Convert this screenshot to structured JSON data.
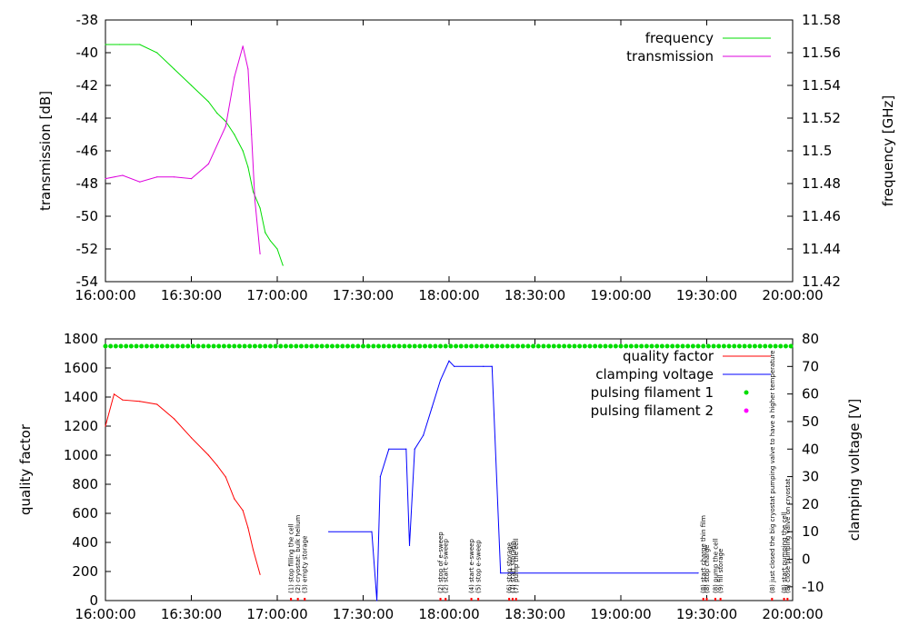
{
  "chart_data": [
    {
      "type": "line",
      "x_tick_labels": [
        "16:00:00",
        "16:30:00",
        "17:00:00",
        "17:30:00",
        "18:00:00",
        "18:30:00",
        "19:00:00",
        "19:30:00",
        "20:00:00"
      ],
      "x_range_hours": [
        16,
        20
      ],
      "ylabel": "transmission [dB]",
      "y2label": "frequency [GHz]",
      "ylim": [
        -54,
        -38
      ],
      "y2lim": [
        11.42,
        11.58
      ],
      "y_tick_labels": [
        "-38",
        "-40",
        "-42",
        "-44",
        "-46",
        "-48",
        "-50",
        "-52",
        "-54"
      ],
      "y2_tick_labels": [
        "11.58",
        "11.56",
        "11.54",
        "11.52",
        "11.5",
        "11.48",
        "11.46",
        "11.44",
        "11.42"
      ],
      "legend_position": "top-right",
      "series": [
        {
          "name": "frequency",
          "axis": "y2",
          "color": "#00dd00",
          "points": [
            [
              16.0,
              11.565
            ],
            [
              16.083,
              11.565
            ],
            [
              16.2,
              11.565
            ],
            [
              16.3,
              11.56
            ],
            [
              16.4,
              11.55
            ],
            [
              16.5,
              11.54
            ],
            [
              16.6,
              11.53
            ],
            [
              16.65,
              11.523
            ],
            [
              16.7,
              11.518
            ],
            [
              16.75,
              11.51
            ],
            [
              16.8,
              11.5
            ],
            [
              16.83,
              11.49
            ],
            [
              16.86,
              11.475
            ],
            [
              16.9,
              11.465
            ],
            [
              16.93,
              11.45
            ],
            [
              16.96,
              11.445
            ],
            [
              17.0,
              11.44
            ],
            [
              17.033,
              11.43
            ]
          ]
        },
        {
          "name": "transmission",
          "axis": "y",
          "color": "#dd00dd",
          "points": [
            [
              16.0,
              -47.7
            ],
            [
              16.1,
              -47.5
            ],
            [
              16.2,
              -47.9
            ],
            [
              16.3,
              -47.6
            ],
            [
              16.4,
              -47.6
            ],
            [
              16.5,
              -47.7
            ],
            [
              16.6,
              -46.8
            ],
            [
              16.7,
              -44.5
            ],
            [
              16.75,
              -41.5
            ],
            [
              16.8,
              -39.6
            ],
            [
              16.83,
              -41.0
            ],
            [
              16.85,
              -45.0
            ],
            [
              16.87,
              -49.0
            ],
            [
              16.9,
              -52.3
            ]
          ]
        }
      ]
    },
    {
      "type": "line",
      "x_tick_labels": [
        "16:00:00",
        "16:30:00",
        "17:00:00",
        "17:30:00",
        "18:00:00",
        "18:30:00",
        "19:00:00",
        "19:30:00",
        "20:00:00"
      ],
      "x_range_hours": [
        16,
        20
      ],
      "ylabel": "quality factor",
      "y2label": "clamping voltage [V]",
      "ylim": [
        0,
        1800
      ],
      "y2lim": [
        -15,
        80
      ],
      "y_tick_labels": [
        "1800",
        "1600",
        "1400",
        "1200",
        "1000",
        "800",
        "600",
        "400",
        "200",
        "0"
      ],
      "y2_tick_labels": [
        "80",
        "70",
        "60",
        "50",
        "40",
        "30",
        "20",
        "10",
        "0",
        "-10"
      ],
      "legend_position": "top-right",
      "series": [
        {
          "name": "quality factor",
          "color": "#ff0000",
          "points": [
            [
              16.0,
              1200
            ],
            [
              16.05,
              1420
            ],
            [
              16.1,
              1380
            ],
            [
              16.2,
              1370
            ],
            [
              16.3,
              1350
            ],
            [
              16.4,
              1250
            ],
            [
              16.5,
              1120
            ],
            [
              16.6,
              1000
            ],
            [
              16.65,
              930
            ],
            [
              16.7,
              850
            ],
            [
              16.75,
              700
            ],
            [
              16.8,
              620
            ],
            [
              16.83,
              500
            ],
            [
              16.86,
              350
            ],
            [
              16.9,
              180
            ]
          ]
        },
        {
          "name": "clamping voltage",
          "color": "#0000ff",
          "axis": "y2",
          "points": [
            [
              17.3,
              10
            ],
            [
              17.55,
              10
            ],
            [
              17.58,
              -15
            ],
            [
              17.6,
              30
            ],
            [
              17.65,
              40
            ],
            [
              17.75,
              40
            ],
            [
              17.77,
              5
            ],
            [
              17.8,
              40
            ],
            [
              17.85,
              45
            ],
            [
              17.9,
              55
            ],
            [
              17.95,
              65
            ],
            [
              18.0,
              72
            ],
            [
              18.03,
              70
            ],
            [
              18.2,
              70
            ],
            [
              18.25,
              70
            ],
            [
              18.3,
              -5
            ],
            [
              19.45,
              -5
            ]
          ]
        },
        {
          "name": "pulsing filament 1",
          "color": "#00dd00",
          "y_level": 1750
        },
        {
          "name": "pulsing filament 2",
          "color": "#ff00ff"
        }
      ],
      "annotations": [
        {
          "x": 17.08,
          "text": "(1) stop filling the cell"
        },
        {
          "x": 17.12,
          "text": "(2) cryostat: bulk helium"
        },
        {
          "x": 17.16,
          "text": "(3) empty storage"
        },
        {
          "x": 17.95,
          "text": "(2) stop of e-sweep"
        },
        {
          "x": 17.98,
          "text": "(2) start e-sweep"
        },
        {
          "x": 18.13,
          "text": "(4) start e-sweep"
        },
        {
          "x": 18.17,
          "text": "(5) stop e-sweep"
        },
        {
          "x": 18.35,
          "text": "(6) stop storage"
        },
        {
          "x": 18.37,
          "text": "(7) start storage"
        },
        {
          "x": 18.39,
          "text": "(7) pump the cell"
        },
        {
          "x": 19.48,
          "text": "(8) start charge thin film"
        },
        {
          "x": 19.5,
          "text": "(8) stop charge"
        },
        {
          "x": 19.55,
          "text": "(8) pump the cell"
        },
        {
          "x": 19.58,
          "text": "(9) fill storage"
        },
        {
          "x": 19.88,
          "text": "(8) just closed the big cryostat pumping valve to have a higher temperature"
        },
        {
          "x": 19.95,
          "text": "(8) start pumping the cell"
        },
        {
          "x": 19.97,
          "text": "(8) close pumping valve on cryostat"
        }
      ]
    }
  ]
}
